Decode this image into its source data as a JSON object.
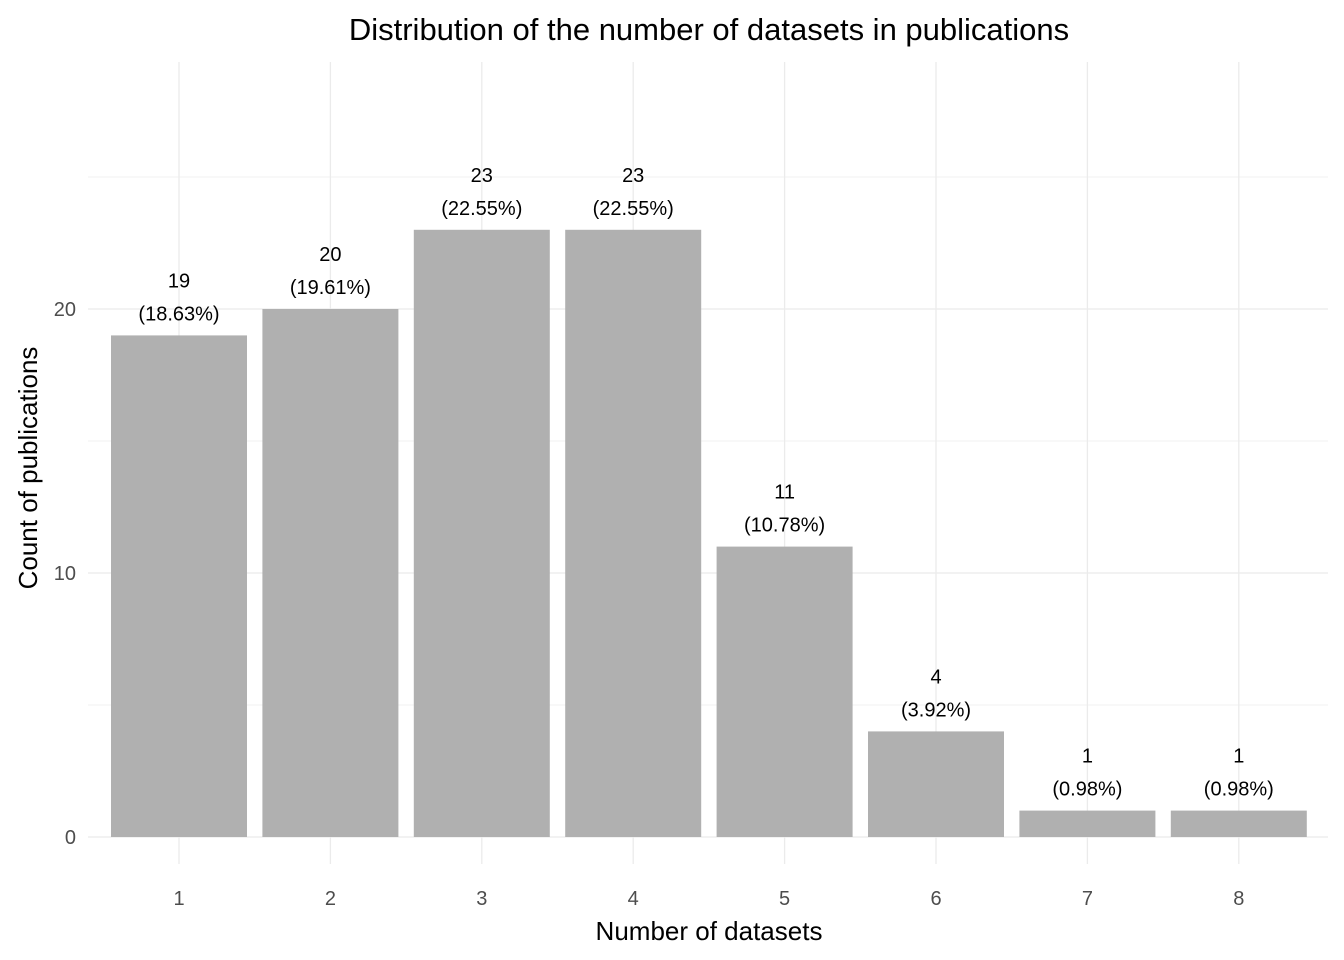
{
  "chart_data": {
    "type": "bar",
    "title": "Distribution of the number of datasets in publications",
    "xlabel": "Number of datasets",
    "ylabel": "Count of publications",
    "categories": [
      "1",
      "2",
      "3",
      "4",
      "5",
      "6",
      "7",
      "8"
    ],
    "values": [
      19,
      20,
      23,
      23,
      11,
      4,
      1,
      1
    ],
    "percent_labels": [
      "(18.63%)",
      "(19.61%)",
      "(22.55%)",
      "(22.55%)",
      "(10.78%)",
      "(3.92%)",
      "(0.98%)",
      "(0.98%)"
    ],
    "y_ticks": [
      0,
      10,
      20
    ],
    "ylim": [
      0,
      28.5
    ],
    "grid": true,
    "bar_color": "#b0b0b0"
  }
}
